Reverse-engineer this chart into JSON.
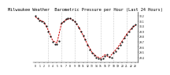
{
  "title": "Milwaukee Weather  Barometric Pressure per Hour (Last 24 Hours)",
  "title_fontsize": 3.8,
  "background_color": "#ffffff",
  "plot_bg_color": "#ffffff",
  "line_color": "#cc0000",
  "marker_color": "#000000",
  "grid_color": "#999999",
  "ylim": [
    29.3,
    30.28
  ],
  "hours": [
    0,
    1,
    2,
    3,
    4,
    5,
    6,
    7,
    8,
    9,
    10,
    11,
    12,
    13,
    14,
    15,
    16,
    17,
    18,
    19,
    20,
    21,
    22,
    23
  ],
  "pressure": [
    30.18,
    30.12,
    30.08,
    29.92,
    29.72,
    29.68,
    30.05,
    30.12,
    30.15,
    30.1,
    29.98,
    29.82,
    29.65,
    29.5,
    29.42,
    29.38,
    29.45,
    29.4,
    29.5,
    29.6,
    29.72,
    29.85,
    29.95,
    30.02
  ],
  "scatter_x": [
    0,
    0.5,
    1,
    1.5,
    2,
    2.5,
    3,
    3.5,
    4,
    4.5,
    5,
    5.5,
    6,
    6.5,
    7,
    7.5,
    8,
    8.5,
    9,
    9.5,
    10,
    10.5,
    11,
    11.5,
    12,
    12.5,
    13,
    13.5,
    14,
    14.5,
    15,
    15.5,
    16,
    16.5,
    17,
    17.5,
    18,
    18.5,
    19,
    19.5,
    20,
    20.5,
    21,
    21.5,
    22,
    22.5,
    23
  ],
  "scatter_y": [
    30.2,
    30.16,
    30.11,
    30.09,
    30.06,
    30.0,
    29.9,
    29.8,
    29.7,
    29.65,
    29.66,
    29.72,
    30.06,
    30.1,
    30.14,
    30.16,
    30.15,
    30.12,
    30.09,
    30.05,
    29.97,
    29.9,
    29.82,
    29.75,
    29.64,
    29.55,
    29.48,
    29.44,
    29.4,
    29.38,
    29.36,
    29.38,
    29.42,
    29.46,
    29.41,
    29.39,
    29.48,
    29.52,
    29.58,
    29.64,
    29.7,
    29.78,
    29.84,
    29.9,
    29.96,
    30.0,
    30.04
  ],
  "vline_positions": [
    3,
    6,
    9,
    12,
    15,
    18,
    21
  ],
  "right_axis_ticks": [
    30.2,
    30.1,
    30.0,
    29.9,
    29.8,
    29.7,
    29.6,
    29.5,
    29.4
  ],
  "right_axis_labels": [
    "30.2",
    "30.1",
    "30.0",
    "29.9",
    "29.8",
    "29.7",
    "29.6",
    "29.5",
    "29.4"
  ]
}
